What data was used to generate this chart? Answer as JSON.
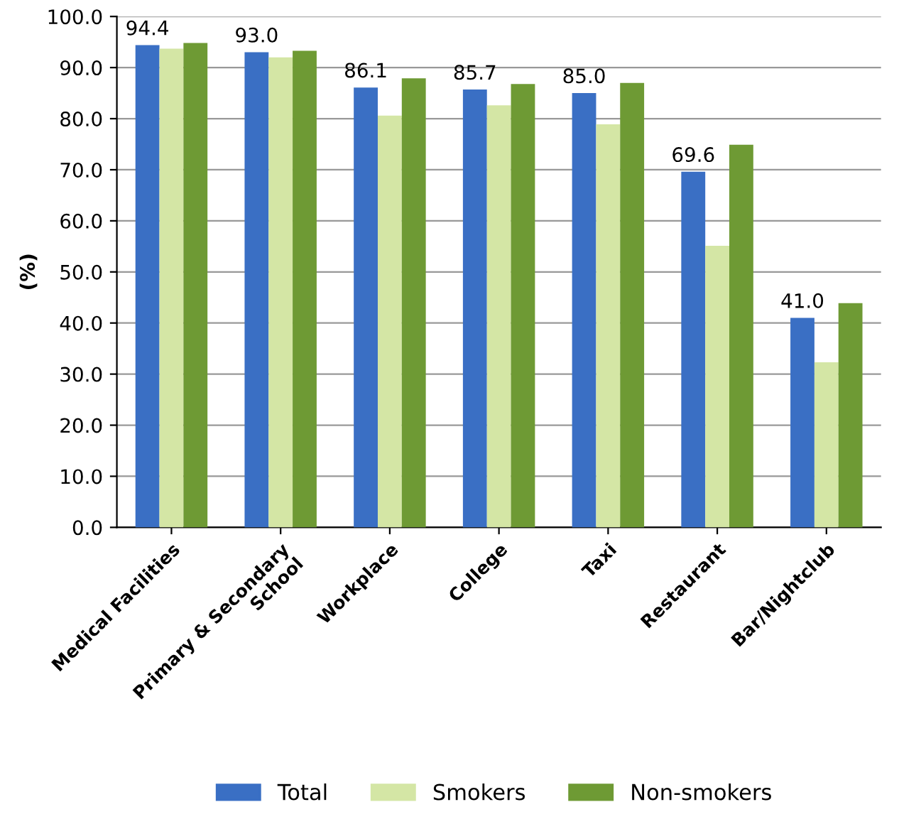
{
  "chart_data": {
    "type": "bar",
    "ylabel": "(%)",
    "categories": [
      "Medical Facilities",
      "Primary & Secondary\nSchool",
      "Workplace",
      "College",
      "Taxi",
      "Restaurant",
      "Bar/Nightclub"
    ],
    "series": [
      {
        "name": "Total",
        "color": "#3a6fc4",
        "values": [
          94.4,
          93.0,
          86.1,
          85.7,
          85.0,
          69.6,
          41.0
        ],
        "value_labels": [
          "94.4",
          "93.0",
          "86.1",
          "85.7",
          "85.0",
          "69.6",
          "41.0"
        ]
      },
      {
        "name": "Smokers",
        "color": "#d4e6a5",
        "values": [
          93.7,
          92.0,
          80.6,
          82.6,
          78.9,
          55.1,
          32.3
        ]
      },
      {
        "name": "Non-smokers",
        "color": "#6e9a34",
        "values": [
          94.8,
          93.3,
          87.9,
          86.8,
          87.0,
          74.9,
          43.9
        ]
      }
    ],
    "ylim": [
      0,
      100
    ],
    "yticks": [
      {
        "value": 0,
        "label": "0.0"
      },
      {
        "value": 10,
        "label": "10.0"
      },
      {
        "value": 20,
        "label": "20.0"
      },
      {
        "value": 30,
        "label": "30.0"
      },
      {
        "value": 40,
        "label": "40.0"
      },
      {
        "value": 50,
        "label": "50.0"
      },
      {
        "value": 60,
        "label": "60.0"
      },
      {
        "value": 70,
        "label": "70.0"
      },
      {
        "value": 80,
        "label": "80.0"
      },
      {
        "value": 90,
        "label": "90.0"
      },
      {
        "value": 100,
        "label": "100.0"
      }
    ],
    "grid": "y",
    "legend": "bottom"
  }
}
